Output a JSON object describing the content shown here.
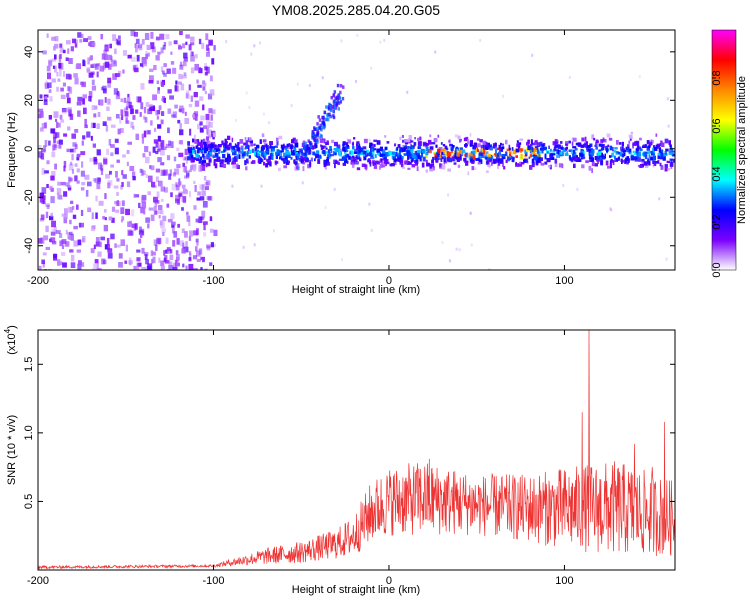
{
  "title": "YM08.2025.285.04.20.G05",
  "chart_data": [
    {
      "type": "heatmap",
      "xlabel": "Height of straight line (km)",
      "ylabel": "Frequency (Hz)",
      "xlim": [
        -200,
        163
      ],
      "ylim": [
        -50,
        49
      ],
      "xticks": [
        -200,
        -100,
        0,
        100
      ],
      "xtick_labels": [
        "-200",
        "-100",
        "0",
        "100"
      ],
      "yticks": [
        -40,
        -20,
        0,
        20,
        40
      ],
      "ytick_labels": [
        "-40",
        "-20",
        "0",
        "20",
        "40"
      ],
      "noise_region_x": [
        -200,
        -100
      ],
      "signal_band_center_hz": -1,
      "signal_band_halfwidth_hz": 7,
      "bright_segment_x": [
        20,
        85
      ],
      "arc_feature": {
        "x_start": -52,
        "x_end": -27,
        "y_start": -5,
        "y_end": 25
      },
      "colorbar": {
        "label": "Normalized spectral amplitude",
        "range": [
          0,
          1
        ],
        "ticks": [
          0.0,
          0.2,
          0.4,
          0.6,
          0.8
        ],
        "tick_labels": [
          "0.0",
          "0.2",
          "0.4",
          "0.6",
          "0.8"
        ],
        "stops": [
          "#ffffff",
          "#7a00ff",
          "#0000ff",
          "#00ffff",
          "#00ff00",
          "#ffff00",
          "#ff8800",
          "#ff0000",
          "#ff00ff"
        ]
      }
    },
    {
      "type": "line",
      "xlabel": "Height of straight line (km)",
      "ylabel": "SNR (10 * v/v)",
      "multiplier_label": "(x10",
      "multiplier_exponent": "4",
      "xlim": [
        -200,
        163
      ],
      "ylim": [
        0,
        1.75
      ],
      "xticks": [
        -200,
        -100,
        0,
        100
      ],
      "xtick_labels": [
        "-200",
        "-100",
        "0",
        "100"
      ],
      "yticks": [
        0.5,
        1.0,
        1.5
      ],
      "ytick_labels": [
        "0.5",
        "1.0",
        "1.5"
      ],
      "series_color": "#ee3333",
      "envelope": [
        {
          "x": -200,
          "base": 0.01,
          "spread": 0.02
        },
        {
          "x": -100,
          "base": 0.02,
          "spread": 0.02
        },
        {
          "x": -90,
          "base": 0.03,
          "spread": 0.05
        },
        {
          "x": -70,
          "base": 0.04,
          "spread": 0.12
        },
        {
          "x": -50,
          "base": 0.05,
          "spread": 0.16
        },
        {
          "x": -30,
          "base": 0.08,
          "spread": 0.22
        },
        {
          "x": -20,
          "base": 0.1,
          "spread": 0.3
        },
        {
          "x": -10,
          "base": 0.2,
          "spread": 0.45
        },
        {
          "x": 0,
          "base": 0.25,
          "spread": 0.5
        },
        {
          "x": 20,
          "base": 0.25,
          "spread": 0.55
        },
        {
          "x": 50,
          "base": 0.25,
          "spread": 0.45
        },
        {
          "x": 80,
          "base": 0.2,
          "spread": 0.5
        },
        {
          "x": 100,
          "base": 0.15,
          "spread": 0.6
        },
        {
          "x": 130,
          "base": 0.1,
          "spread": 0.7
        },
        {
          "x": 163,
          "base": 0.1,
          "spread": 0.55
        }
      ],
      "spikes": [
        {
          "x": 17,
          "y": 0.74
        },
        {
          "x": 23,
          "y": 0.81
        },
        {
          "x": 110,
          "y": 1.15
        },
        {
          "x": 114,
          "y": 1.75
        },
        {
          "x": 140,
          "y": 0.92
        },
        {
          "x": 150,
          "y": 0.75
        },
        {
          "x": 157,
          "y": 1.08
        }
      ]
    }
  ]
}
